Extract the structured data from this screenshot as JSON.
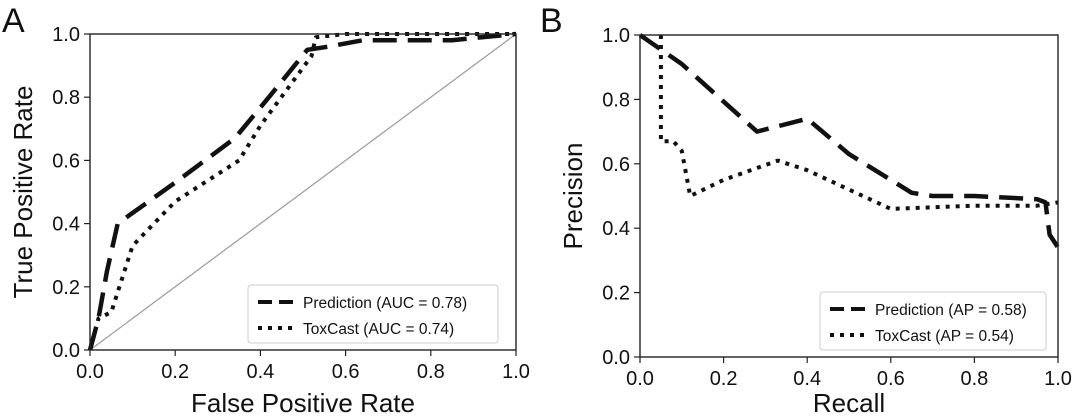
{
  "chart_data": [
    {
      "panel_label": "A",
      "type": "line",
      "title": "",
      "xlabel": "False Positive Rate",
      "ylabel": "True Positive Rate",
      "xlim": [
        0,
        1
      ],
      "ylim": [
        0,
        1
      ],
      "xticks": [
        "0.0",
        "0.2",
        "0.4",
        "0.6",
        "0.8",
        "1.0"
      ],
      "yticks": [
        "0.0",
        "0.2",
        "0.4",
        "0.6",
        "0.8",
        "1.0"
      ],
      "grid": false,
      "legend_position": "bottom-right",
      "reference_line": {
        "x": [
          0,
          1
        ],
        "y": [
          0,
          1
        ]
      },
      "series": [
        {
          "name": "Prediction (AUC = 0.78)",
          "style": "dashed",
          "x": [
            0,
            0.02,
            0.04,
            0.065,
            0.2,
            0.34,
            0.42,
            0.51,
            0.56,
            0.64,
            0.85,
            0.92,
            1.0
          ],
          "y": [
            0,
            0.1,
            0.25,
            0.4,
            0.53,
            0.67,
            0.8,
            0.95,
            0.96,
            0.98,
            0.98,
            0.99,
            1.0
          ]
        },
        {
          "name": "ToxCast (AUC = 0.74)",
          "style": "dotted",
          "x": [
            0,
            0.02,
            0.05,
            0.1,
            0.2,
            0.35,
            0.4,
            0.52,
            0.53,
            0.6,
            1.0
          ],
          "y": [
            0,
            0.1,
            0.12,
            0.33,
            0.47,
            0.6,
            0.71,
            0.93,
            0.99,
            1.0,
            1.0
          ]
        }
      ]
    },
    {
      "panel_label": "B",
      "type": "line",
      "title": "",
      "xlabel": "Recall",
      "ylabel": "Precision",
      "xlim": [
        0,
        1
      ],
      "ylim": [
        0,
        1
      ],
      "xticks": [
        "0.0",
        "0.2",
        "0.4",
        "0.6",
        "0.8",
        "1.0"
      ],
      "yticks": [
        "0.0",
        "0.2",
        "0.4",
        "0.6",
        "0.8",
        "1.0"
      ],
      "grid": false,
      "legend_position": "bottom-right",
      "series": [
        {
          "name": "Prediction (AP = 0.58)",
          "style": "dashed",
          "x": [
            0,
            0.1,
            0.28,
            0.4,
            0.5,
            0.65,
            0.7,
            0.8,
            0.95,
            0.97,
            0.975,
            0.98,
            1.0
          ],
          "y": [
            1.0,
            0.91,
            0.7,
            0.74,
            0.63,
            0.51,
            0.5,
            0.5,
            0.49,
            0.48,
            0.43,
            0.38,
            0.34
          ]
        },
        {
          "name": "ToxCast (AP = 0.54)",
          "style": "dotted",
          "x": [
            0.05,
            0.05,
            0.05,
            0.08,
            0.1,
            0.12,
            0.2,
            0.33,
            0.4,
            0.6,
            0.8,
            0.95,
            1.0
          ],
          "y": [
            1.0,
            0.88,
            0.67,
            0.67,
            0.64,
            0.5,
            0.55,
            0.61,
            0.58,
            0.46,
            0.47,
            0.47,
            0.48
          ]
        }
      ]
    }
  ]
}
